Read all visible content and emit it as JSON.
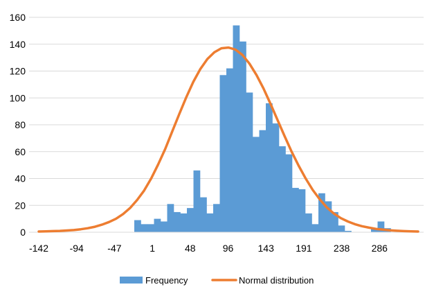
{
  "chart_data": {
    "type": "bar",
    "title": "",
    "xlabel": "",
    "ylabel": "",
    "ylim": [
      0,
      160
    ],
    "yticks": [
      0,
      20,
      40,
      60,
      80,
      100,
      120,
      140,
      160
    ],
    "grid": "horizontal",
    "legend_placement": "bottom",
    "x_tick_labels": [
      "-142",
      "-94",
      "-47",
      "1",
      "48",
      "96",
      "143",
      "191",
      "238",
      "286"
    ],
    "colors": {
      "frequency": "#5b9bd5",
      "normal": "#ed7d31",
      "grid": "#d9d9d9"
    },
    "series": [
      {
        "name": "Frequency",
        "type": "bar",
        "values": [
          0,
          0,
          0,
          0,
          0,
          0,
          0,
          0,
          0,
          0,
          0,
          0,
          0,
          0,
          0,
          0,
          9,
          6,
          6,
          10,
          8,
          21,
          15,
          14,
          18,
          46,
          26,
          14,
          21,
          117,
          122,
          154,
          142,
          104,
          71,
          76,
          96,
          81,
          64,
          58,
          33,
          32,
          14,
          6,
          29,
          23,
          15,
          5,
          1,
          0,
          0,
          0,
          3,
          8,
          3,
          0,
          0,
          0,
          0,
          0
        ]
      },
      {
        "name": "Normal distribution",
        "type": "line",
        "values": [
          0.5,
          0.6,
          0.8,
          1.0,
          1.3,
          1.6,
          2.2,
          3.0,
          4.1,
          5.6,
          7.6,
          10.0,
          13.5,
          18.0,
          24.0,
          31.0,
          40.0,
          50.5,
          62.0,
          75.0,
          88.0,
          100.5,
          112.0,
          121.5,
          129.0,
          134.0,
          137.0,
          137.5,
          136.0,
          132.0,
          125.5,
          117.0,
          107.0,
          95.5,
          83.5,
          71.5,
          60.0,
          49.5,
          40.0,
          31.5,
          24.5,
          18.5,
          14.0,
          10.5,
          8.0,
          6.0,
          4.5,
          3.4,
          2.5,
          1.9,
          1.4,
          1.1,
          0.8,
          0.6,
          0.5
        ]
      }
    ]
  },
  "legend": {
    "frequency_label": "Frequency",
    "normal_label": "Normal distribution"
  }
}
